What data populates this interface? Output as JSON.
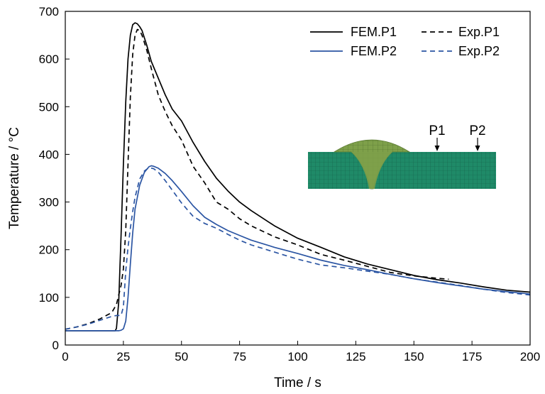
{
  "chart_data": {
    "type": "line",
    "xlabel": "Time / s",
    "ylabel": "Temperature / °C",
    "xlim": [
      0,
      200
    ],
    "ylim": [
      0,
      700
    ],
    "xticks": [
      0,
      25,
      50,
      75,
      100,
      125,
      150,
      175,
      200
    ],
    "yticks": [
      0,
      100,
      200,
      300,
      400,
      500,
      600,
      700
    ],
    "grid": false,
    "legend_position": "top-right",
    "series": [
      {
        "name": "FEM.P1",
        "color": "#000000",
        "dash": "solid",
        "x": [
          0,
          10,
          20,
          21.5,
          22,
          23,
          24,
          25,
          26,
          27,
          28,
          29,
          30,
          31,
          32,
          33,
          35,
          37,
          40,
          43,
          46,
          50,
          55,
          60,
          65,
          70,
          75,
          80,
          90,
          100,
          110,
          120,
          130,
          140,
          150,
          160,
          170,
          180,
          190,
          200
        ],
        "y": [
          30,
          30,
          30,
          30,
          35,
          90,
          230,
          380,
          510,
          600,
          650,
          672,
          676,
          674,
          668,
          660,
          630,
          595,
          560,
          525,
          495,
          470,
          425,
          385,
          350,
          323,
          300,
          282,
          250,
          224,
          205,
          185,
          170,
          158,
          146,
          137,
          130,
          122,
          115,
          111
        ]
      },
      {
        "name": "Exp.P1",
        "color": "#000000",
        "dash": "dashed",
        "x": [
          0,
          5,
          10,
          15,
          20,
          22,
          23,
          24,
          25,
          26,
          27,
          28,
          29,
          30,
          31,
          32,
          33,
          35,
          37,
          40,
          43,
          46,
          50,
          55,
          60,
          65,
          70,
          75,
          80,
          90,
          100,
          110,
          120,
          130,
          140,
          150,
          160,
          165
        ],
        "y": [
          33,
          38,
          45,
          55,
          68,
          85,
          105,
          125,
          160,
          240,
          380,
          520,
          610,
          650,
          662,
          660,
          650,
          620,
          580,
          525,
          490,
          460,
          430,
          375,
          340,
          300,
          285,
          265,
          250,
          227,
          210,
          190,
          178,
          165,
          152,
          145,
          140,
          138
        ]
      },
      {
        "name": "FEM.P2",
        "color": "#2b55a3",
        "dash": "solid",
        "x": [
          0,
          10,
          20,
          22,
          23,
          24,
          25,
          26,
          27,
          28,
          29,
          30,
          32,
          34,
          36,
          37,
          38,
          40,
          43,
          46,
          50,
          55,
          60,
          65,
          70,
          75,
          80,
          90,
          100,
          110,
          120,
          130,
          140,
          150,
          160,
          170,
          180,
          190,
          200
        ],
        "y": [
          30,
          30,
          30,
          30,
          30,
          31,
          34,
          50,
          100,
          170,
          235,
          285,
          335,
          362,
          374,
          376,
          375,
          371,
          360,
          345,
          322,
          292,
          268,
          253,
          240,
          230,
          220,
          205,
          192,
          178,
          167,
          158,
          148,
          139,
          131,
          124,
          117,
          112,
          107
        ]
      },
      {
        "name": "Exp.P2",
        "color": "#2b55a3",
        "dash": "dashed",
        "x": [
          0,
          5,
          10,
          15,
          20,
          22,
          24,
          25,
          26,
          27,
          28,
          29,
          30,
          32,
          34,
          36,
          38,
          40,
          43,
          46,
          50,
          55,
          60,
          65,
          70,
          75,
          80,
          90,
          100,
          110,
          120,
          130,
          140,
          150,
          160,
          170,
          180,
          190,
          200
        ],
        "y": [
          33,
          38,
          44,
          52,
          60,
          62,
          62,
          80,
          155,
          205,
          245,
          280,
          310,
          348,
          365,
          372,
          370,
          363,
          345,
          325,
          298,
          270,
          255,
          245,
          232,
          220,
          210,
          195,
          180,
          168,
          162,
          155,
          148,
          139,
          132,
          125,
          117,
          110,
          105
        ]
      }
    ]
  },
  "inset": {
    "weld_fill": "#7ea04a",
    "plate_fill": "#1f8a68",
    "points": [
      {
        "label": "P1",
        "x": 160
      },
      {
        "label": "P2",
        "x": 178
      }
    ]
  }
}
